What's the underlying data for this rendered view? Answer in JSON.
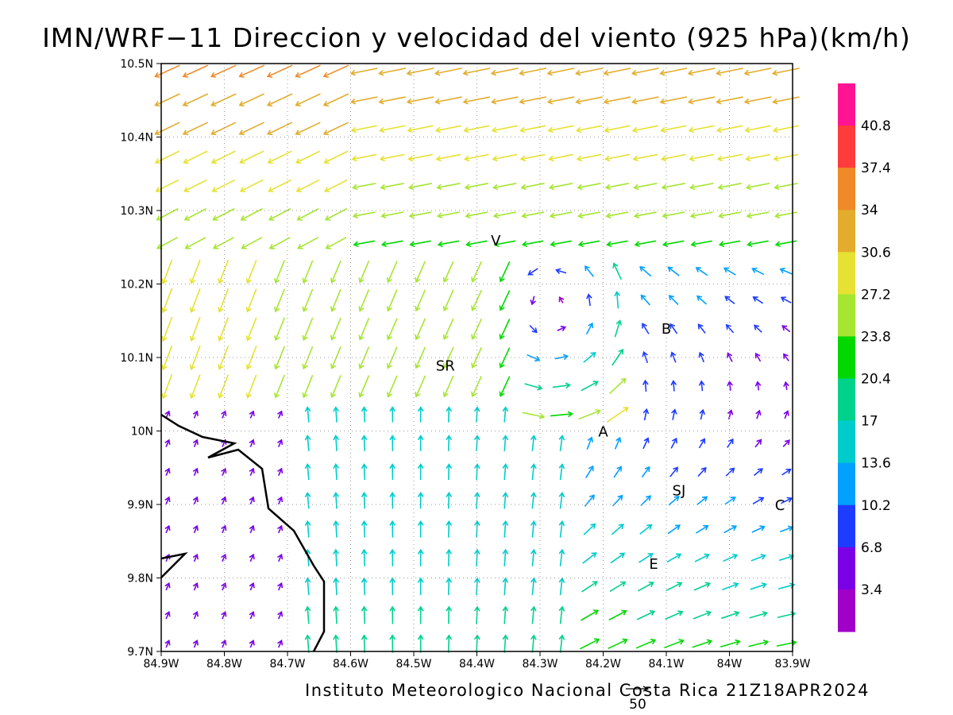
{
  "title": "IMN/WRF−11 Direccion y velocidad del viento (925 hPa)(km/h)",
  "footer": "Instituto Meteorologico Nacional Costa Rica 21Z18APR2024",
  "reference_vector": {
    "label": "50"
  },
  "axes": {
    "x_ticks": [
      "84.9W",
      "84.8W",
      "84.7W",
      "84.6W",
      "84.5W",
      "84.4W",
      "84.3W",
      "84.2W",
      "84.1W",
      "84W",
      "83.9W"
    ],
    "y_ticks": [
      "10.5N",
      "10.4N",
      "10.3N",
      "10.2N",
      "10.1N",
      "10N",
      "9.9N",
      "9.8N",
      "9.7N"
    ],
    "lon_range": [
      -84.9,
      -83.9
    ],
    "lat_range": [
      9.7,
      10.5
    ]
  },
  "colorbar": {
    "labels": [
      "40.8",
      "37.4",
      "34",
      "30.6",
      "27.2",
      "23.8",
      "20.4",
      "17",
      "13.6",
      "10.2",
      "6.8",
      "3.4"
    ],
    "colors": [
      "#ff1493",
      "#ff3c3c",
      "#f08a28",
      "#e3ac2c",
      "#e6e132",
      "#a6e632",
      "#00d800",
      "#00d28c",
      "#00cccc",
      "#00a0ff",
      "#1e3cff",
      "#7a00e6",
      "#a000c8"
    ]
  },
  "stations": [
    {
      "code": "V",
      "lon": -84.37,
      "lat": 10.26
    },
    {
      "code": "SR",
      "lon": -84.45,
      "lat": 10.09
    },
    {
      "code": "B",
      "lon": -84.1,
      "lat": 10.14
    },
    {
      "code": "A",
      "lon": -84.2,
      "lat": 10.0
    },
    {
      "code": "SJ",
      "lon": -84.08,
      "lat": 9.92
    },
    {
      "code": "C",
      "lon": -83.92,
      "lat": 9.9
    },
    {
      "code": "E",
      "lon": -84.12,
      "lat": 9.82
    }
  ]
}
